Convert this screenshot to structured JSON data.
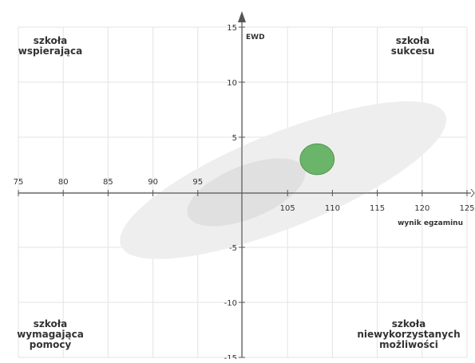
{
  "chart_data": {
    "type": "scatter",
    "xlabel": "wynik egzaminu",
    "ylabel": "EWD",
    "xlim": [
      75,
      125
    ],
    "ylim": [
      -15,
      15
    ],
    "x_ticks": [
      75,
      80,
      85,
      90,
      95,
      105,
      110,
      115,
      120,
      125
    ],
    "y_ticks": [
      -15,
      -10,
      -5,
      5,
      10,
      15
    ],
    "grid": true,
    "quadrant_labels": {
      "top_left": [
        "szkoła",
        "wspierająca"
      ],
      "top_right": [
        "szkoła",
        "sukcesu"
      ],
      "bottom_left": [
        "szkoła",
        "wymagająca",
        "pomocy"
      ],
      "bottom_right": [
        "szkoła",
        "niewykorzystanych",
        "możliwości"
      ]
    },
    "ellipses": [
      {
        "cx": 104.5,
        "cy": 1.1,
        "rx": 19.5,
        "ry": 4.3,
        "angle": 22,
        "color": "#eeeeee"
      },
      {
        "cx": 100.4,
        "cy": 0.0,
        "rx": 7.0,
        "ry": 2.4,
        "angle": 22,
        "color": "#e0e0e0"
      },
      {
        "cx": 108.3,
        "cy": 3.0,
        "rx": 1.9,
        "ry": 1.4,
        "angle": 0,
        "color": "#6ab56a",
        "stroke": "#4e944e"
      }
    ]
  }
}
